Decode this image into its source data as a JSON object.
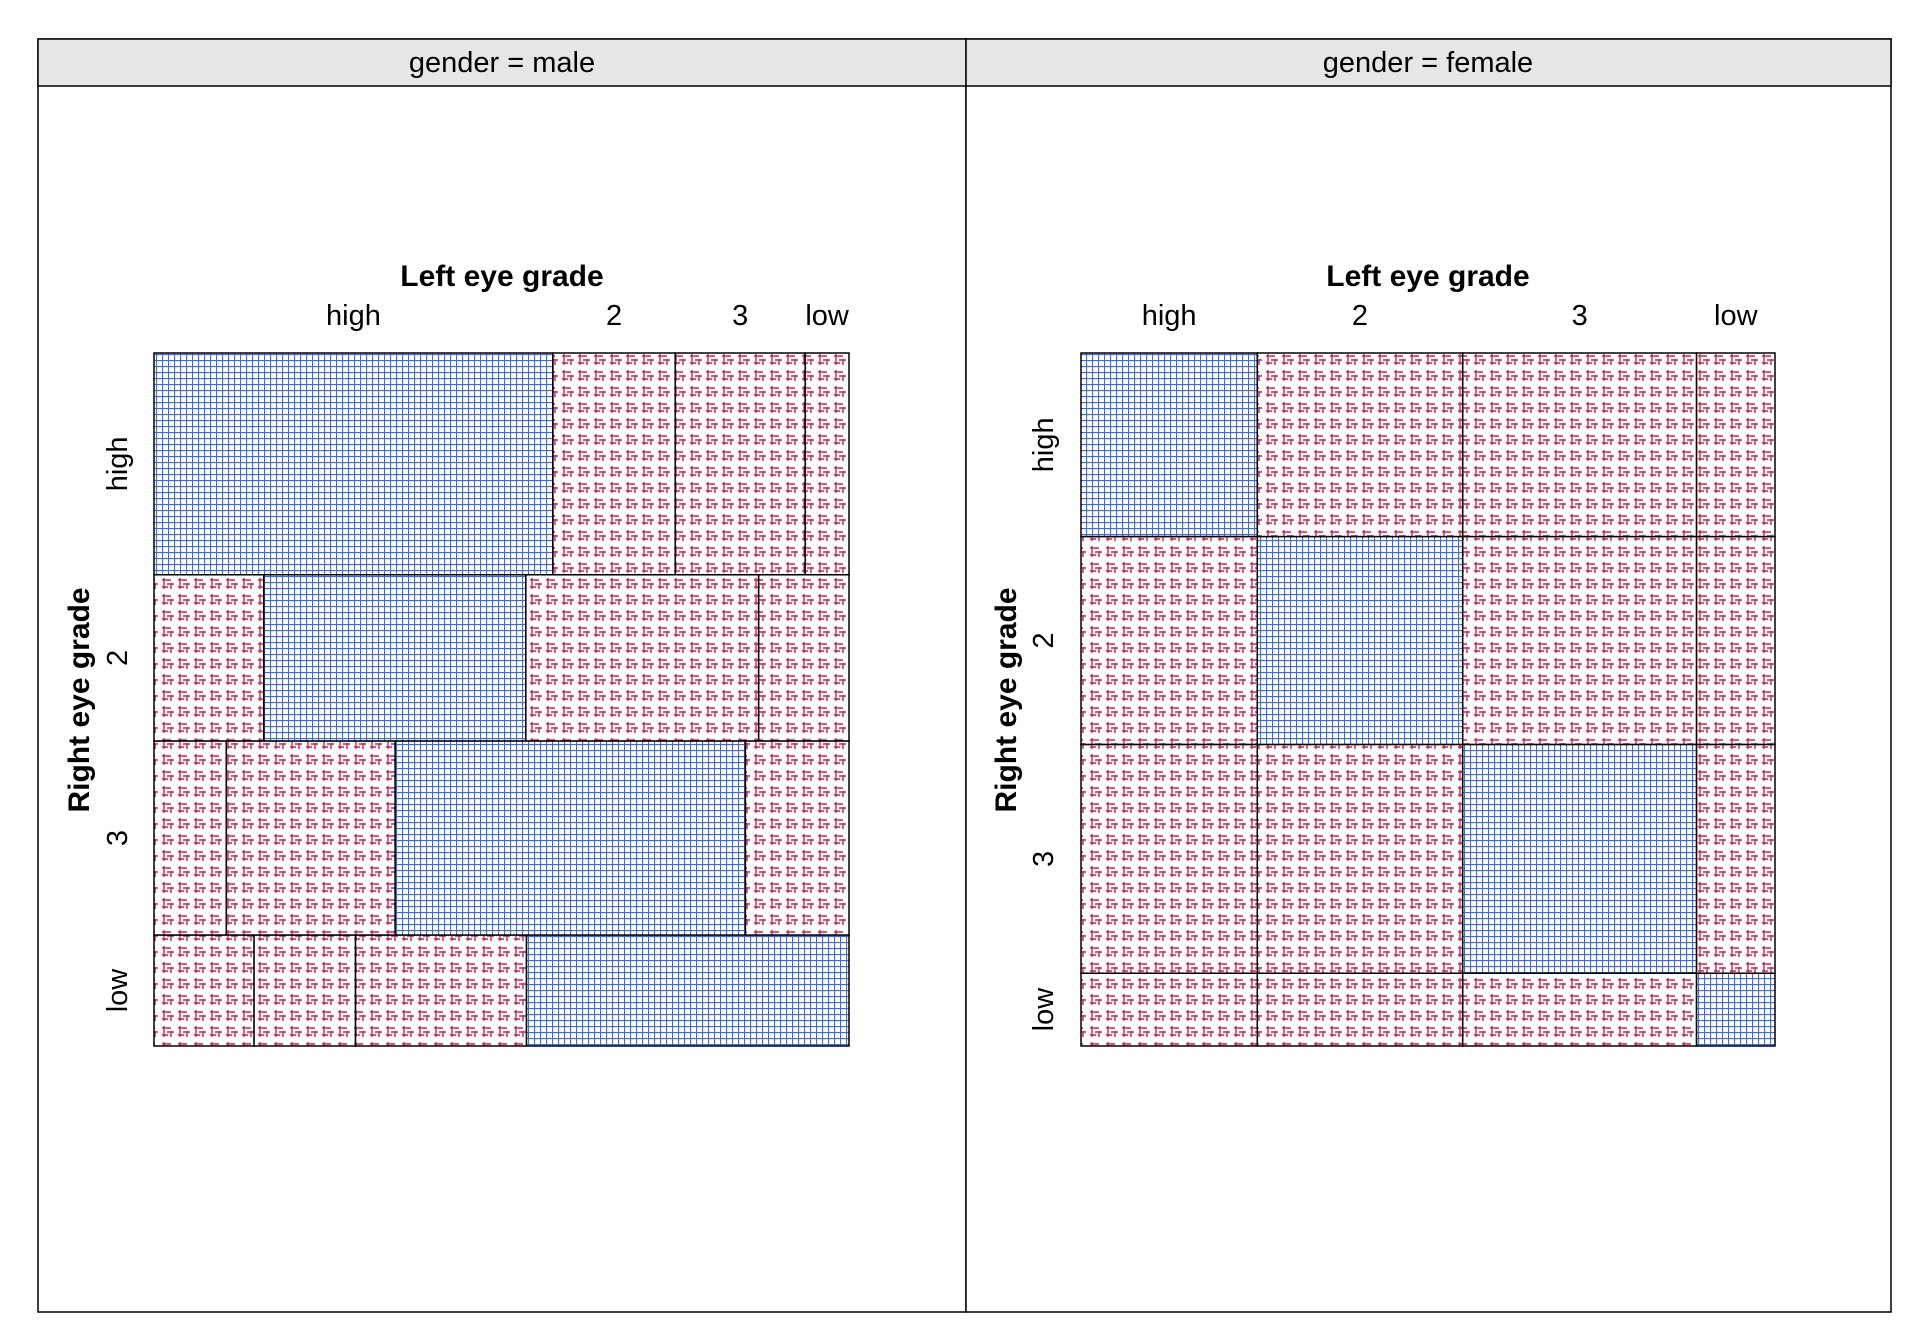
{
  "chart_data": {
    "type": "mosaic",
    "row_variable": "Right eye grade",
    "column_variable": "Left eye grade",
    "categories": [
      "high",
      "2",
      "3",
      "low"
    ],
    "colors": {
      "diagonal": "#4169e1",
      "off_diagonal": "#cc2255",
      "strip_background": "#e6e6e6",
      "border": "#000000"
    },
    "panels": [
      {
        "strip_label": "gender = male",
        "row_proportions": [
          0.32,
          0.24,
          0.28,
          0.16
        ],
        "cell_column_proportions": [
          [
            0.574,
            0.176,
            0.187,
            0.063
          ],
          [
            0.158,
            0.377,
            0.335,
            0.13
          ],
          [
            0.104,
            0.243,
            0.504,
            0.149
          ],
          [
            0.144,
            0.146,
            0.246,
            0.464
          ]
        ]
      },
      {
        "strip_label": "gender = female",
        "row_proportions": [
          0.265,
          0.3,
          0.33,
          0.105
        ],
        "cell_column_proportions": [
          [
            0.254,
            0.296,
            0.337,
            0.113
          ],
          [
            0.254,
            0.296,
            0.337,
            0.113
          ],
          [
            0.254,
            0.296,
            0.337,
            0.113
          ],
          [
            0.254,
            0.296,
            0.337,
            0.113
          ]
        ]
      }
    ]
  }
}
